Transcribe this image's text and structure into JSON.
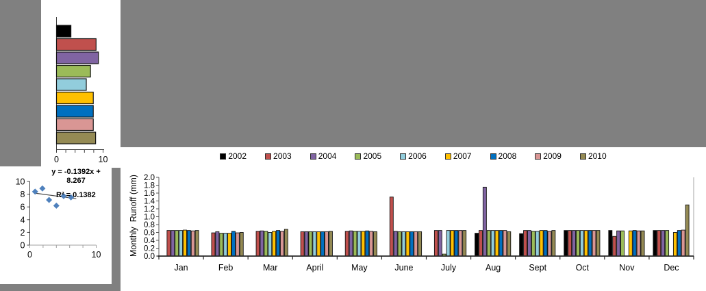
{
  "colors": {
    "background_gray": "#808080",
    "panel_white": "#FFFFFF",
    "axis_dark": "#262626",
    "axis_gray": "#595959",
    "plot_border_gray": "#A6A6A6",
    "bar_outline": "#141414"
  },
  "chart_data": [
    {
      "id": "annual-runoff-bar",
      "type": "bar",
      "orientation": "horizontal",
      "title": "",
      "categories": [
        "2002",
        "2003",
        "2004",
        "2005",
        "2006",
        "2007",
        "2008",
        "2009",
        "2010"
      ],
      "values": [
        3.1,
        8.5,
        9.0,
        7.3,
        6.4,
        7.9,
        7.9,
        7.9,
        8.4
      ],
      "colors": [
        "#000000",
        "#C0504D",
        "#8064A2",
        "#9BBB59",
        "#92CDDC",
        "#FFC000",
        "#0070C0",
        "#D99694",
        "#948A54"
      ],
      "xlim": [
        0,
        10
      ],
      "xtick_labels": [
        "0",
        "10"
      ],
      "xtick_minor_step": 2,
      "grid": false
    },
    {
      "id": "annual-trend-scatter",
      "type": "scatter",
      "title": "",
      "points": [
        [
          0.8,
          8.4
        ],
        [
          1.9,
          8.9
        ],
        [
          2.9,
          7.1
        ],
        [
          4.0,
          6.2
        ],
        [
          5.1,
          7.7
        ],
        [
          6.2,
          7.5
        ]
      ],
      "marker": "diamond",
      "marker_color": "#4F81BD",
      "trendline": {
        "slope": -0.1392,
        "intercept": 8.267,
        "x_range": [
          0.8,
          7.0
        ],
        "color": "#4a4a4a",
        "equation_line1": "y = -0.1392x +",
        "equation_line2": "8.267",
        "r_squared_label": "R² = 0.1382"
      },
      "xlim": [
        0,
        10
      ],
      "ylim": [
        0,
        10
      ],
      "ytick_labels": [
        "0",
        "2",
        "4",
        "6",
        "8",
        "10"
      ],
      "xtick_labels": [
        "0",
        "10"
      ],
      "xtick_minor_step": 2,
      "grid": false
    },
    {
      "id": "monthly-runoff-bar",
      "type": "bar",
      "orientation": "vertical",
      "title": "",
      "xlabel": "",
      "ylabel": "Monthly  Runoff (mm)",
      "categories": [
        "Jan",
        "Feb",
        "Mar",
        "April",
        "May",
        "June",
        "July",
        "Aug",
        "Sept",
        "Oct",
        "Nov",
        "Dec"
      ],
      "series": [
        {
          "name": "2002",
          "color": "#000000",
          "values": [
            0,
            0,
            0,
            0,
            0,
            0,
            0,
            0.58,
            0.57,
            0.65,
            0.65,
            0.65
          ]
        },
        {
          "name": "2003",
          "color": "#C0504D",
          "values": [
            0.65,
            0.59,
            0.63,
            0.62,
            0.63,
            1.5,
            0.65,
            0.65,
            0.65,
            0.65,
            0.5,
            0.65
          ]
        },
        {
          "name": "2004",
          "color": "#8064A2",
          "values": [
            0.65,
            0.62,
            0.64,
            0.62,
            0.64,
            0.63,
            0.65,
            1.75,
            0.65,
            0.65,
            0.64,
            0.65
          ]
        },
        {
          "name": "2005",
          "color": "#9BBB59",
          "values": [
            0.65,
            0.58,
            0.63,
            0.62,
            0.63,
            0.62,
            0.05,
            0.65,
            0.63,
            0.65,
            0.64,
            0.65
          ]
        },
        {
          "name": "2006",
          "color": "#92CDDC",
          "values": [
            0.65,
            0.58,
            0.6,
            0.62,
            0.63,
            0.62,
            0.65,
            0.65,
            0.63,
            0.65,
            0,
            0
          ]
        },
        {
          "name": "2007",
          "color": "#FFC000",
          "values": [
            0.66,
            0.58,
            0.63,
            0.62,
            0.63,
            0.62,
            0.65,
            0.65,
            0.65,
            0.65,
            0.64,
            0.6
          ]
        },
        {
          "name": "2008",
          "color": "#0070C0",
          "values": [
            0.65,
            0.63,
            0.65,
            0.62,
            0.64,
            0.62,
            0.65,
            0.65,
            0.65,
            0.65,
            0.65,
            0.65
          ]
        },
        {
          "name": "2009",
          "color": "#D99694",
          "values": [
            0.64,
            0.59,
            0.63,
            0.62,
            0.63,
            0.62,
            0.65,
            0.65,
            0.63,
            0.65,
            0.64,
            0.66
          ]
        },
        {
          "name": "2010",
          "color": "#948A54",
          "values": [
            0.65,
            0.6,
            0.68,
            0.63,
            0.62,
            0.62,
            0.65,
            0.62,
            0.65,
            0.65,
            0.64,
            1.3
          ]
        }
      ],
      "ylim": [
        0,
        2.0
      ],
      "ytick_step": 0.2,
      "legend_position": "top",
      "grid": false
    }
  ]
}
